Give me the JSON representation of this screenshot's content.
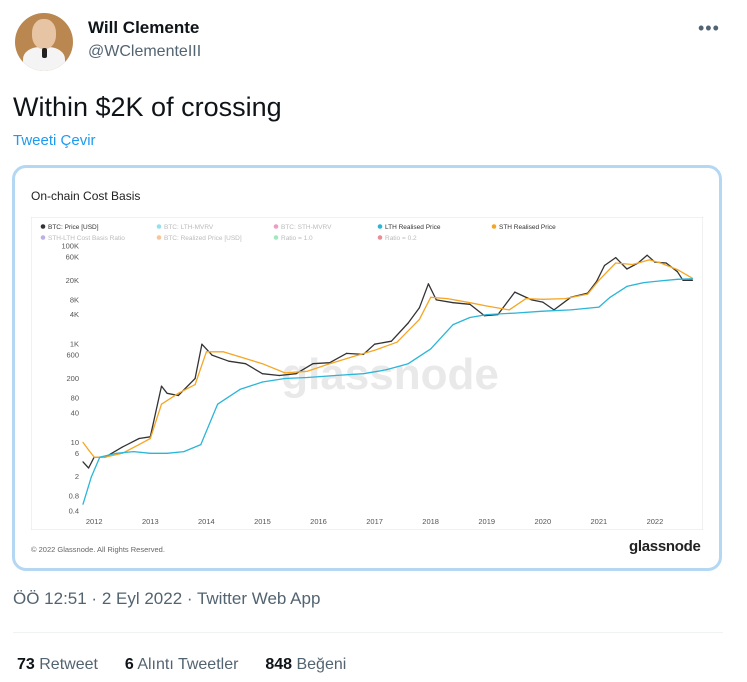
{
  "tweet": {
    "name": "Will Clemente",
    "handle": "@WClementeIII",
    "text": "Within $2K of crossing",
    "translate_label": "Tweeti Çevir",
    "meta": "ÖÖ 12:51 · 2 Eyl 2022 · Twitter Web App",
    "more_icon": "more-horizontal-icon",
    "stats": {
      "retweets_count": "73",
      "retweets_label": "Retweet",
      "quotes_count": "6",
      "quotes_label": "Alıntı Tweetler",
      "likes_count": "848",
      "likes_label": "Beğeni"
    }
  },
  "chart_card": {
    "title": "On-chain Cost Basis",
    "copyright": "© 2022 Glassnode. All Rights Reserved.",
    "brand": "glassnode",
    "watermark": "glassnode"
  },
  "chart_data": {
    "type": "line",
    "title": "On-chain Cost Basis",
    "y_scale": "log",
    "ylim": [
      0.4,
      100000
    ],
    "y_ticks": [
      "100K",
      "60K",
      "20K",
      "8K",
      "4K",
      "1K",
      "600",
      "200",
      "80",
      "40",
      "10",
      "6",
      "2",
      "0.8",
      "0.4"
    ],
    "y_tick_values": [
      100000,
      60000,
      20000,
      8000,
      4000,
      1000,
      600,
      200,
      80,
      40,
      10,
      6,
      2,
      0.8,
      0.4
    ],
    "x_ticks": [
      "2012",
      "2013",
      "2014",
      "2015",
      "2016",
      "2017",
      "2018",
      "2019",
      "2020",
      "2021",
      "2022"
    ],
    "xlim": [
      2011.8,
      2022.75
    ],
    "legend": [
      {
        "label": "BTC: Price [USD]",
        "color": "#333333",
        "active": true
      },
      {
        "label": "BTC: LTH-MVRV",
        "color": "#1bb8d6",
        "active": false
      },
      {
        "label": "BTC: STH-MVRV",
        "color": "#d6267a",
        "active": false
      },
      {
        "label": "LTH Realised Price",
        "color": "#2bb5d8",
        "active": true
      },
      {
        "label": "STH Realised Price",
        "color": "#f5a623",
        "active": true
      },
      {
        "label": "STH-LTH Cost Basis Ratio",
        "color": "#6a4fc9",
        "active": false
      },
      {
        "label": "BTC: Realized Price [USD]",
        "color": "#f07d1f",
        "active": false
      },
      {
        "label": "Ratio = 1.0",
        "color": "#2ecc71",
        "active": false
      },
      {
        "label": "Ratio = 0.2",
        "color": "#d0021b",
        "active": false
      }
    ],
    "series": [
      {
        "name": "BTC: Price [USD]",
        "color": "#333333",
        "x": [
          2011.8,
          2011.9,
          2012.0,
          2012.2,
          2012.5,
          2012.8,
          2013.0,
          2013.2,
          2013.3,
          2013.5,
          2013.8,
          2013.92,
          2014.1,
          2014.4,
          2014.7,
          2015.0,
          2015.3,
          2015.6,
          2015.9,
          2016.2,
          2016.5,
          2016.8,
          2017.0,
          2017.3,
          2017.6,
          2017.8,
          2017.96,
          2018.1,
          2018.4,
          2018.7,
          2018.96,
          2019.2,
          2019.5,
          2019.8,
          2020.0,
          2020.2,
          2020.5,
          2020.8,
          2020.96,
          2021.1,
          2021.3,
          2021.5,
          2021.7,
          2021.86,
          2022.0,
          2022.2,
          2022.4,
          2022.5,
          2022.67
        ],
        "values": [
          4,
          3,
          5,
          5,
          8,
          12,
          13,
          140,
          100,
          90,
          200,
          1000,
          600,
          450,
          400,
          250,
          230,
          250,
          400,
          420,
          650,
          620,
          1000,
          1150,
          2700,
          5500,
          17000,
          8000,
          7000,
          6500,
          3800,
          4000,
          11500,
          8000,
          7200,
          5000,
          9000,
          11000,
          19000,
          40000,
          58000,
          34000,
          45000,
          65000,
          47000,
          45000,
          30000,
          20000,
          20000
        ]
      },
      {
        "name": "STH Realised Price",
        "color": "#f5a623",
        "x": [
          2011.8,
          2011.9,
          2012.0,
          2012.2,
          2012.5,
          2012.8,
          2013.0,
          2013.2,
          2013.5,
          2013.8,
          2014.0,
          2014.3,
          2014.6,
          2015.0,
          2015.4,
          2015.8,
          2016.2,
          2016.6,
          2017.0,
          2017.4,
          2017.8,
          2018.0,
          2018.3,
          2018.7,
          2019.0,
          2019.4,
          2019.7,
          2020.0,
          2020.4,
          2020.8,
          2021.0,
          2021.3,
          2021.6,
          2021.9,
          2022.1,
          2022.4,
          2022.67
        ],
        "values": [
          10,
          7,
          5,
          5,
          6,
          9,
          12,
          60,
          100,
          150,
          700,
          700,
          550,
          400,
          260,
          280,
          400,
          550,
          750,
          1100,
          3200,
          9000,
          8500,
          7000,
          6000,
          5000,
          8500,
          8200,
          8500,
          10500,
          20000,
          45000,
          42000,
          52000,
          45000,
          33000,
          22000
        ]
      },
      {
        "name": "LTH Realised Price",
        "color": "#2bb5d8",
        "x": [
          2011.8,
          2011.95,
          2012.1,
          2012.4,
          2012.7,
          2013.0,
          2013.3,
          2013.6,
          2013.9,
          2014.2,
          2014.6,
          2015.0,
          2015.4,
          2015.8,
          2016.3,
          2016.8,
          2017.2,
          2017.6,
          2018.0,
          2018.4,
          2018.7,
          2019.0,
          2019.5,
          2020.0,
          2020.5,
          2021.0,
          2021.2,
          2021.5,
          2021.8,
          2022.1,
          2022.4,
          2022.67
        ],
        "values": [
          0.55,
          2,
          5,
          6,
          6.5,
          6,
          6,
          6.5,
          9,
          60,
          120,
          170,
          200,
          210,
          230,
          250,
          300,
          400,
          800,
          2500,
          3500,
          4000,
          4300,
          4700,
          5000,
          5700,
          9000,
          15000,
          18000,
          19500,
          21000,
          21500
        ]
      }
    ]
  }
}
